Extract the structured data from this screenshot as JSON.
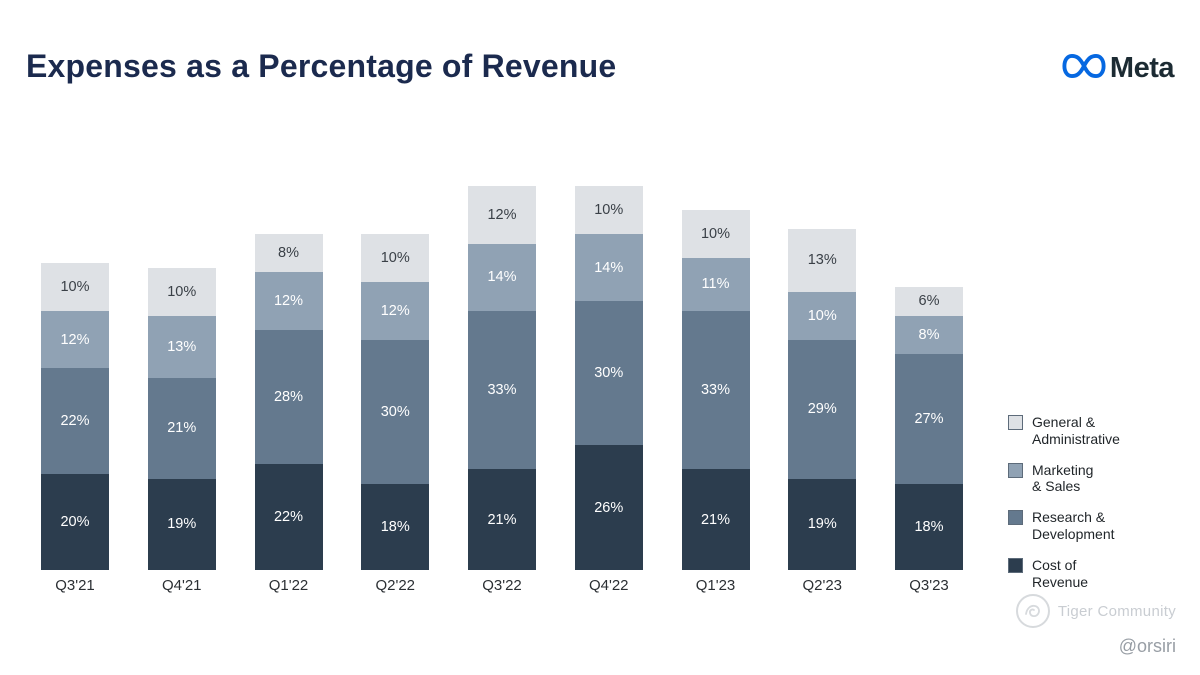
{
  "header": {
    "title": "Expenses as a Percentage of Revenue",
    "brand": "Meta"
  },
  "chart_data": {
    "type": "bar",
    "stacked": true,
    "title": "Expenses as a Percentage of Revenue",
    "value_suffix": "%",
    "ylim": [
      0,
      85
    ],
    "grid": false,
    "legend_position": "right",
    "categories": [
      "Q3'21",
      "Q4'21",
      "Q1'22",
      "Q2'22",
      "Q3'22",
      "Q4'22",
      "Q1'23",
      "Q2'23",
      "Q3'23"
    ],
    "series": [
      {
        "name": "Cost of Revenue",
        "color": "#2c3d4e",
        "label_color": "#ffffff",
        "values": [
          20,
          19,
          22,
          18,
          21,
          26,
          21,
          19,
          18
        ]
      },
      {
        "name": "Research & Development",
        "color": "#64798e",
        "label_color": "#ffffff",
        "values": [
          22,
          21,
          28,
          30,
          33,
          30,
          33,
          29,
          27
        ]
      },
      {
        "name": "Marketing & Sales",
        "color": "#90a2b4",
        "label_color": "#ffffff",
        "values": [
          12,
          13,
          12,
          12,
          14,
          14,
          11,
          10,
          8
        ]
      },
      {
        "name": "General & Administrative",
        "color": "#dee1e5",
        "label_color": "#3a4047",
        "values": [
          10,
          10,
          8,
          10,
          12,
          10,
          10,
          13,
          6
        ]
      }
    ]
  },
  "legend": {
    "items": [
      {
        "line1": "General &",
        "line2": "Administrative",
        "color": "#dee1e5"
      },
      {
        "line1": "Marketing",
        "line2": "& Sales",
        "color": "#90a2b4"
      },
      {
        "line1": "Research &",
        "line2": "Development",
        "color": "#64798e"
      },
      {
        "line1": "Cost of",
        "line2": "Revenue",
        "color": "#2c3d4e"
      }
    ]
  },
  "watermark": {
    "community": "Tiger Community",
    "handle": "@orsiri"
  }
}
